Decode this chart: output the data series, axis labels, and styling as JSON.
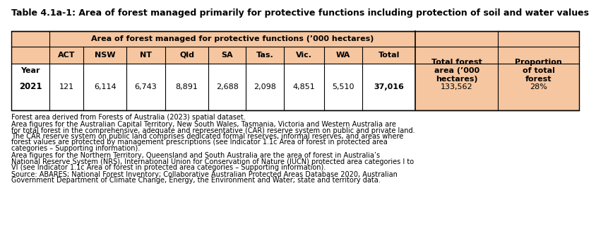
{
  "title": "Table 4.1a-1: Area of forest managed primarily for protective functions including protection of soil and water values",
  "header_group1": "Area of forest managed for protective functions (’000 hectares)",
  "subheaders": [
    "ACT",
    "NSW",
    "NT",
    "Qld",
    "SA",
    "Tas.",
    "Vic.",
    "WA",
    "Total"
  ],
  "header_year": "Year",
  "header_totalforest": "Total forest\narea (’000\nhectares)",
  "header_proportion": "Proportion\nof total\nforest",
  "data_year": "2021",
  "data_values": [
    "121",
    "6,114",
    "6,743",
    "8,891",
    "2,688",
    "2,098",
    "4,851",
    "5,510",
    "37,016"
  ],
  "data_total_forest": "133,562",
  "data_proportion": "28%",
  "footnote1": "Forest area derived from Forests of Australia (2023) spatial dataset.",
  "footnote2": "Area figures for the Australian Capital Territory, New South Wales, Tasmania, Victoria and Western Australia are for total forest in the comprehensive, adequate and representative (CAR) reserve system on public and private land. The CAR reserve system on public land comprises dedicated formal reserves, informal reserves, and areas where forest values are protected by management prescriptions (see Indicator 1.1c Area of forest in protected area categories – Supporting information).",
  "footnote3": "Area figures for the Northern Territory, Queensland and South Australia are the area of forest in Australia’s National Reserve System (NRS), International Union for Conservation of Nature (IUCN) protected area categories I to VI (see Indicator 1.1c Area of forest in protected area categories – Supporting information).",
  "footnote4": "Source: ABARES; National Forest Inventory; Collaborative Australian Protected Areas Database 2020, Australian Government Department of Climate Change, Energy, the Environment and Water; state and territory data.",
  "header_bg": "#F5C6A0",
  "white": "#FFFFFF",
  "black": "#000000",
  "title_fontsize": 9.0,
  "table_fontsize": 8.0,
  "footnote_fontsize": 7.0
}
